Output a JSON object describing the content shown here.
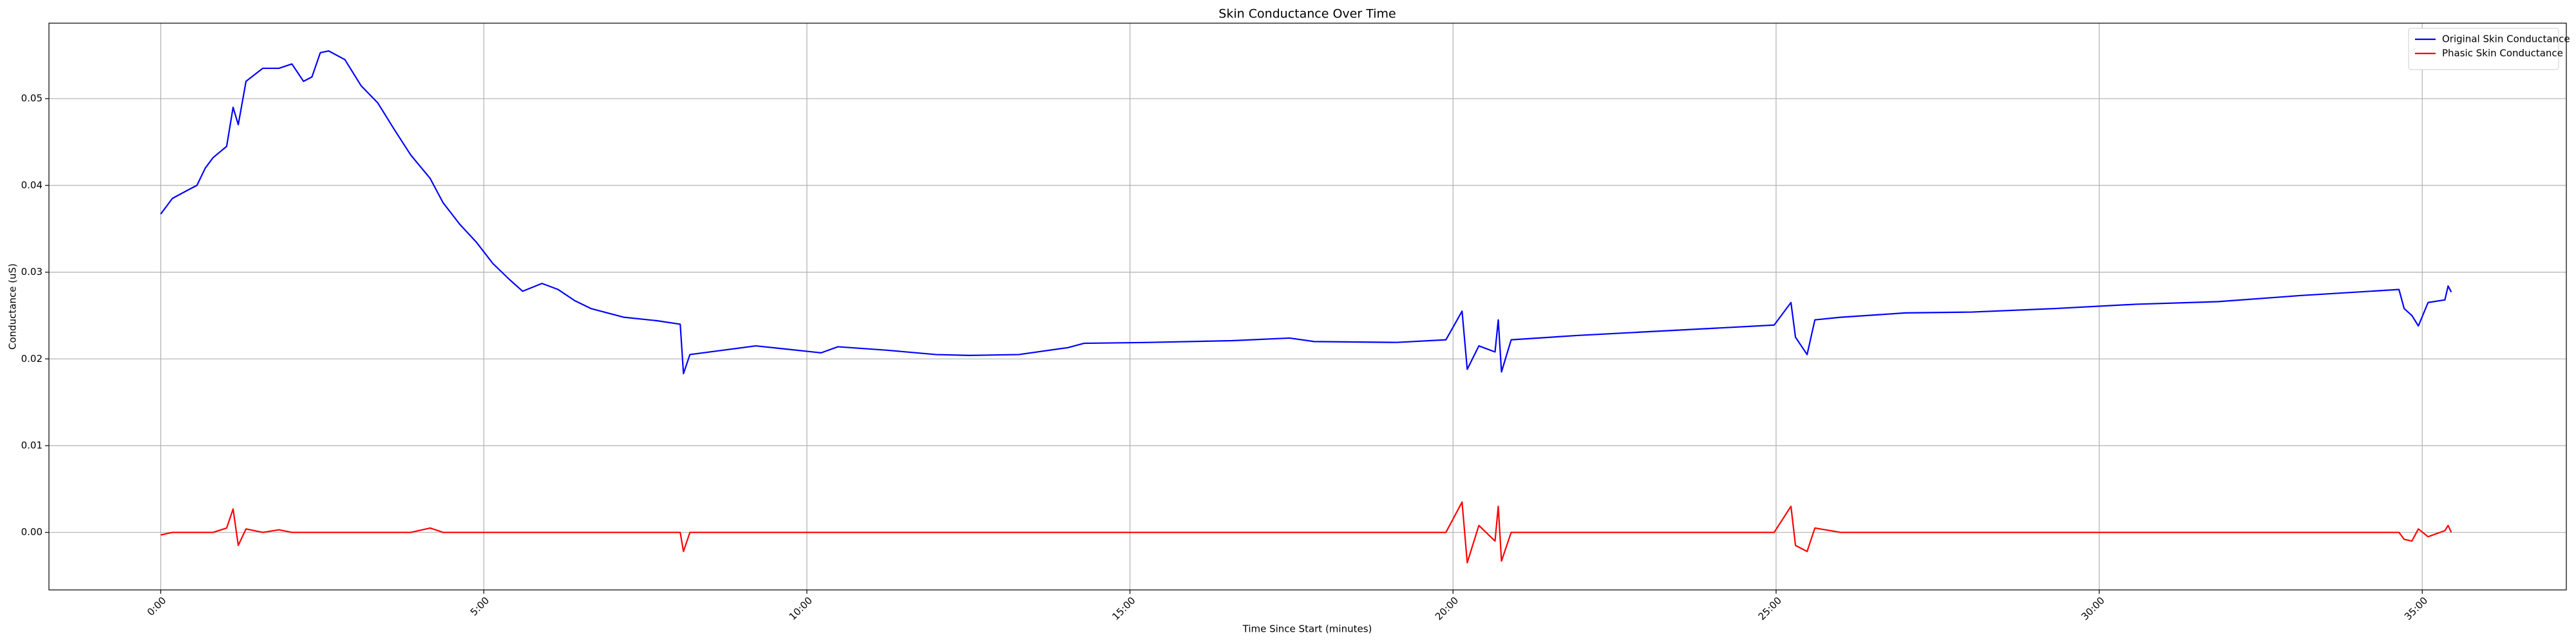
{
  "chart_data": {
    "type": "line",
    "title": "Skin Conductance  Over Time",
    "x_label": "Time Since Start (minutes)",
    "y_label": "Conductance (uS)",
    "x": [
      0,
      0.18,
      0.43,
      0.56,
      0.69,
      0.81,
      1.02,
      1.12,
      1.2,
      1.32,
      1.58,
      1.83,
      2.03,
      2.21,
      2.34,
      2.47,
      2.6,
      2.85,
      3.1,
      3.36,
      3.61,
      3.87,
      4.17,
      4.37,
      4.63,
      4.88,
      5.14,
      5.39,
      5.6,
      5.9,
      6.15,
      6.41,
      6.66,
      7.17,
      7.68,
      8.04,
      8.09,
      8.19,
      8.7,
      9.21,
      9.72,
      10.22,
      10.48,
      11.24,
      12.0,
      12.51,
      13.28,
      14.04,
      14.29,
      15.31,
      16.58,
      17.47,
      17.85,
      19.13,
      19.89,
      20.14,
      20.22,
      20.4,
      20.65,
      20.7,
      20.75,
      20.9,
      21.92,
      22.94,
      24.21,
      24.97,
      25.23,
      25.3,
      25.48,
      25.6,
      26.0,
      27.0,
      28.03,
      29.3,
      30.57,
      31.84,
      33.11,
      34.64,
      34.72,
      34.84,
      34.94,
      35.09,
      35.35,
      35.4,
      35.45
    ],
    "series": [
      {
        "name": "Original Skin Conductance",
        "color": "#0000ff",
        "values": [
          0.0367,
          0.0385,
          0.0395,
          0.04,
          0.042,
          0.0432,
          0.0445,
          0.049,
          0.047,
          0.052,
          0.0535,
          0.0535,
          0.054,
          0.052,
          0.0525,
          0.0553,
          0.0555,
          0.0545,
          0.0515,
          0.0495,
          0.0465,
          0.0435,
          0.0408,
          0.038,
          0.0355,
          0.0335,
          0.031,
          0.0292,
          0.0278,
          0.0287,
          0.028,
          0.0267,
          0.0258,
          0.0248,
          0.0244,
          0.024,
          0.0183,
          0.0205,
          0.021,
          0.0215,
          0.0211,
          0.0207,
          0.0214,
          0.021,
          0.0205,
          0.0204,
          0.0205,
          0.0213,
          0.0218,
          0.0219,
          0.0221,
          0.0224,
          0.022,
          0.0219,
          0.0222,
          0.0255,
          0.0188,
          0.0215,
          0.0208,
          0.0245,
          0.0185,
          0.0222,
          0.0227,
          0.0231,
          0.0236,
          0.0239,
          0.0265,
          0.0225,
          0.0205,
          0.0245,
          0.0248,
          0.0253,
          0.0254,
          0.0258,
          0.0263,
          0.0266,
          0.0273,
          0.028,
          0.0258,
          0.025,
          0.0238,
          0.0265,
          0.0268,
          0.0284,
          0.0277
        ]
      },
      {
        "name": "Phasic Skin Conductance",
        "color": "#ff0000",
        "values": [
          -0.0003,
          0,
          0,
          0,
          0,
          0,
          0.0005,
          0.0027,
          -0.0015,
          0.0004,
          0,
          0.0003,
          0,
          0,
          0,
          0,
          0,
          0,
          0,
          0,
          0,
          0,
          0.0005,
          0,
          0,
          0,
          0,
          0,
          0,
          0,
          0,
          0,
          0,
          0,
          0,
          0,
          -0.0022,
          0,
          0,
          0,
          0,
          0,
          0,
          0,
          0,
          0,
          0,
          0,
          0,
          0,
          0,
          0,
          0,
          0,
          0,
          0.0035,
          -0.0035,
          0.0008,
          -0.001,
          0.003,
          -0.0033,
          0,
          0,
          0,
          0,
          0,
          0.003,
          -0.0015,
          -0.0022,
          0.0005,
          0,
          0,
          0,
          0,
          0,
          0,
          0,
          0,
          -0.0008,
          -0.001,
          0.0004,
          -0.0005,
          0.0002,
          0.0008,
          0
        ]
      }
    ],
    "xlim": [
      -1.73,
      37.23
    ],
    "xticks": [
      {
        "value": 0,
        "label": "0:00"
      },
      {
        "value": 5,
        "label": "5:00"
      },
      {
        "value": 10,
        "label": "10:00"
      },
      {
        "value": 15,
        "label": "15:00"
      },
      {
        "value": 20,
        "label": "20:00"
      },
      {
        "value": 25,
        "label": "25:00"
      },
      {
        "value": 30,
        "label": "30:00"
      },
      {
        "value": 35,
        "label": "35:00"
      }
    ],
    "ylim": [
      -0.00663,
      0.0587
    ],
    "yticks": [
      {
        "value": 0,
        "label": "0.00"
      },
      0.01,
      0.02,
      0.03,
      0.04,
      0.05
    ],
    "grid": true,
    "legend": "upper right"
  }
}
